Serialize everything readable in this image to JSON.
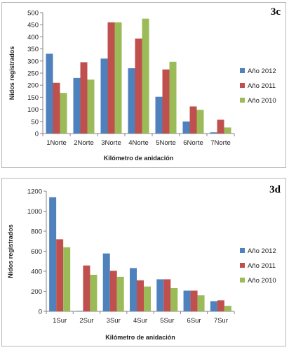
{
  "chart_data": [
    {
      "type": "bar",
      "panel_label": "3c",
      "xlabel": "Kilómetro  de anidación",
      "ylabel": "Nidos registrados",
      "ylim": [
        0,
        500
      ],
      "yticks": [
        0,
        50,
        100,
        150,
        200,
        250,
        300,
        350,
        400,
        450,
        500
      ],
      "categories": [
        "1Norte",
        "2Norte",
        "3Norte",
        "4Norte",
        "5Norte",
        "6Norte",
        "7Norte"
      ],
      "series": [
        {
          "name": "Año 2012",
          "color": "#4f81bd",
          "values": [
            330,
            230,
            310,
            270,
            152,
            50,
            5
          ]
        },
        {
          "name": "Año 2011",
          "color": "#c0504d",
          "values": [
            210,
            295,
            460,
            393,
            265,
            112,
            57
          ]
        },
        {
          "name": "Año 2010",
          "color": "#9bbb59",
          "values": [
            168,
            223,
            460,
            475,
            297,
            98,
            25
          ]
        }
      ],
      "legend": "right",
      "grid": false
    },
    {
      "type": "bar",
      "panel_label": "3d",
      "xlabel": "Kilómetro  de anidación",
      "ylabel": "Nidos registrados",
      "ylim": [
        0,
        1200
      ],
      "yticks": [
        0,
        200,
        400,
        600,
        800,
        1000,
        1200
      ],
      "categories": [
        "1Sur",
        "2Sur",
        "3Sur",
        "4Sur",
        "5Sur",
        "6Sur",
        "7Sur"
      ],
      "series": [
        {
          "name": "Año 2012",
          "color": "#4f81bd",
          "values": [
            1140,
            5,
            578,
            432,
            320,
            207,
            102
          ]
        },
        {
          "name": "Año 2011",
          "color": "#c0504d",
          "values": [
            720,
            458,
            405,
            310,
            320,
            207,
            110
          ]
        },
        {
          "name": "Año 2010",
          "color": "#9bbb59",
          "values": [
            640,
            365,
            345,
            248,
            232,
            160,
            55
          ]
        }
      ],
      "legend": "right",
      "grid": false
    }
  ]
}
